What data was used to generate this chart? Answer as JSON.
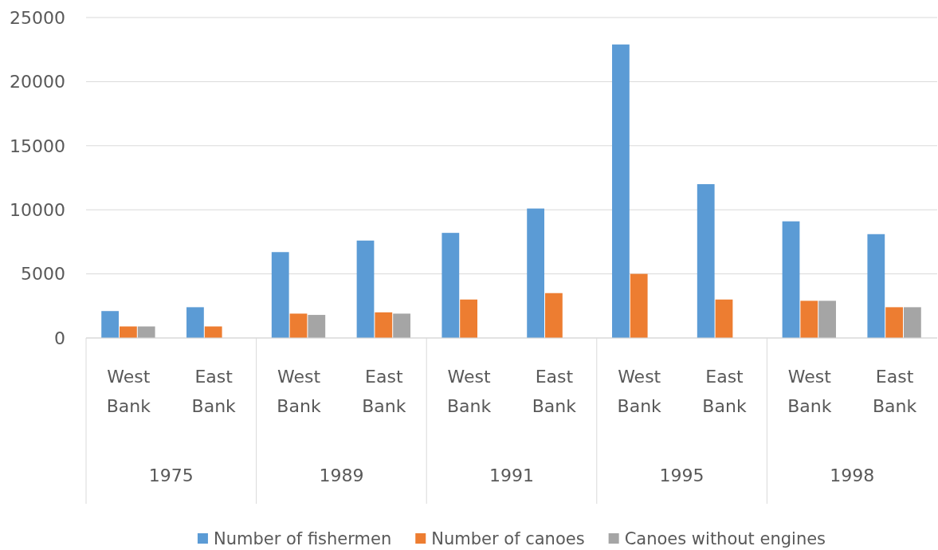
{
  "chart_data": {
    "type": "bar",
    "categories": [
      "West Bank",
      "East Bank",
      "West Bank",
      "East Bank",
      "West Bank",
      "East Bank",
      "West Bank",
      "East Bank",
      "West Bank",
      "East Bank"
    ],
    "annotations": [
      "1975",
      "1989",
      "1991",
      "1995",
      "1998"
    ],
    "series": [
      {
        "name": "Number of fishermen",
        "color": "#5b9bd5",
        "values": [
          2100,
          2400,
          6700,
          7600,
          8200,
          10100,
          22900,
          12000,
          9100,
          8100
        ]
      },
      {
        "name": "Number of canoes",
        "color": "#ed7d31",
        "values": [
          900,
          900,
          1900,
          2000,
          3000,
          3500,
          5000,
          3000,
          2900,
          2400
        ]
      },
      {
        "name": "Canoes without engines",
        "color": "#a5a5a5",
        "values": [
          900,
          null,
          1800,
          1900,
          null,
          null,
          null,
          null,
          2900,
          2400
        ]
      }
    ],
    "ylim": [
      0,
      25000
    ],
    "yticks": [
      0,
      5000,
      10000,
      15000,
      20000,
      25000
    ],
    "grid": "y",
    "legend": "bottom"
  }
}
